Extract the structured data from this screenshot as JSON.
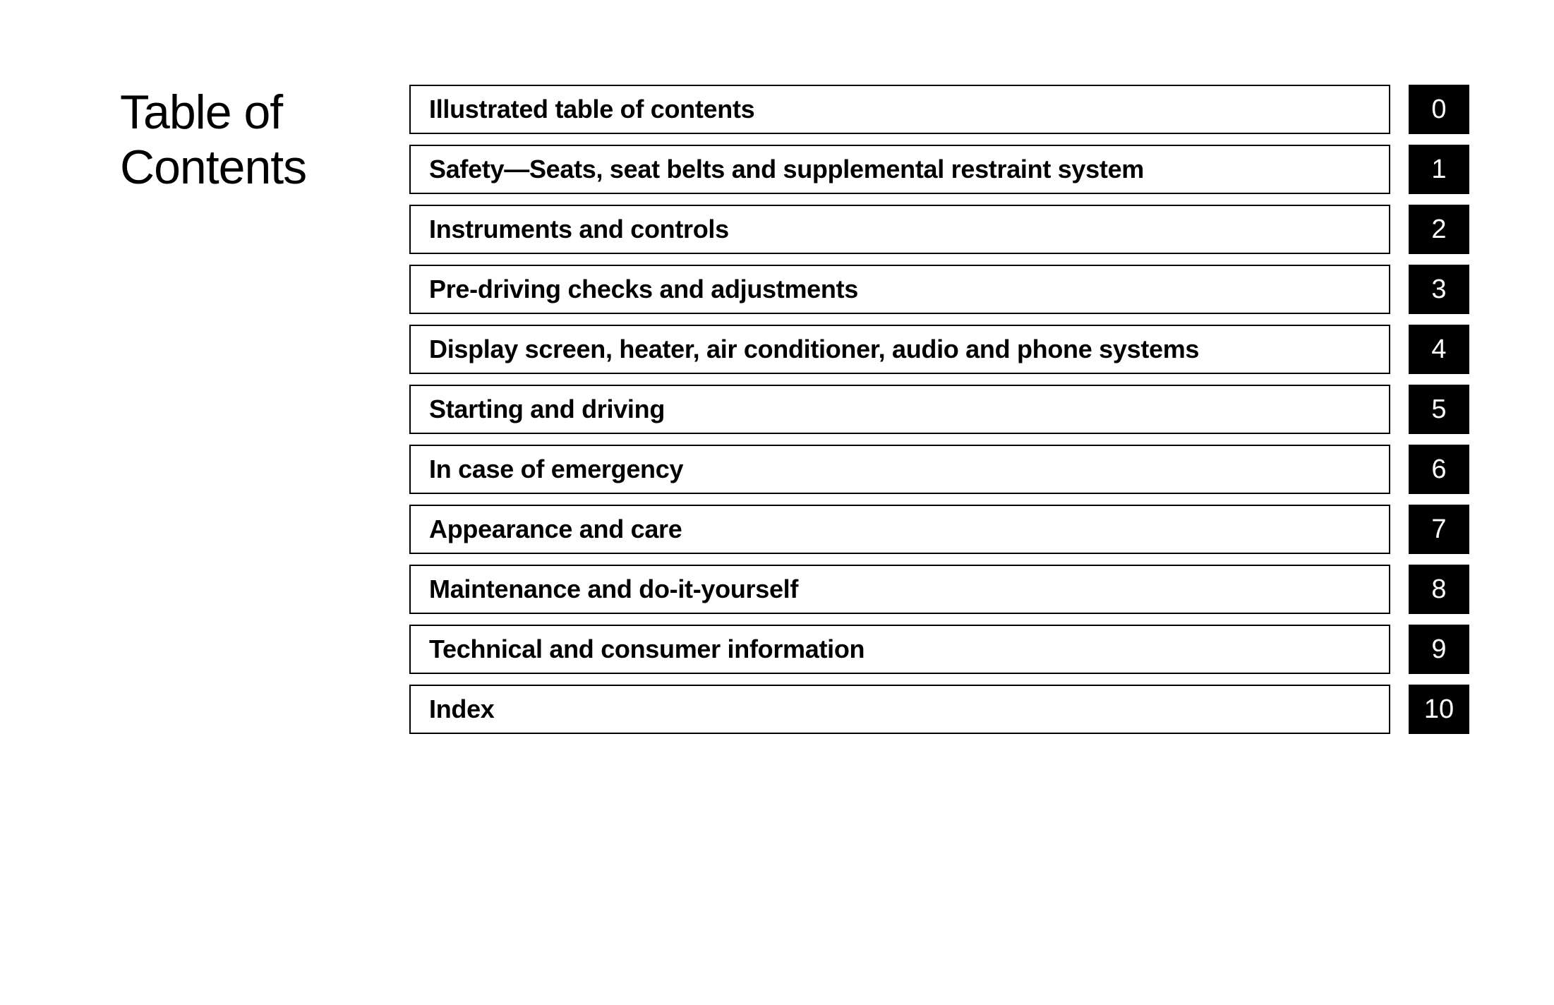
{
  "title": "Table of Contents",
  "entries": [
    {
      "label": "Illustrated table of contents",
      "number": "0"
    },
    {
      "label": "Safety—Seats, seat belts and supplemental restraint system",
      "number": "1"
    },
    {
      "label": "Instruments and controls",
      "number": "2"
    },
    {
      "label": "Pre-driving checks and adjustments",
      "number": "3"
    },
    {
      "label": "Display screen, heater, air conditioner, audio and phone systems",
      "number": "4"
    },
    {
      "label": "Starting and driving",
      "number": "5"
    },
    {
      "label": "In case of emergency",
      "number": "6"
    },
    {
      "label": "Appearance and care",
      "number": "7"
    },
    {
      "label": "Maintenance and do-it-yourself",
      "number": "8"
    },
    {
      "label": "Technical and consumer information",
      "number": "9"
    },
    {
      "label": "Index",
      "number": "10"
    }
  ],
  "styling": {
    "background_color": "#ffffff",
    "title_font_size": 68,
    "title_font_weight": 300,
    "title_color": "#000000",
    "label_font_size": 36,
    "label_font_weight": 550,
    "label_color": "#000000",
    "number_font_size": 38,
    "number_font_weight": 400,
    "number_color": "#ffffff",
    "number_bg_color": "#000000",
    "box_border_color": "#000000",
    "box_border_width": 2,
    "row_gap": 15,
    "number_box_width": 86
  }
}
